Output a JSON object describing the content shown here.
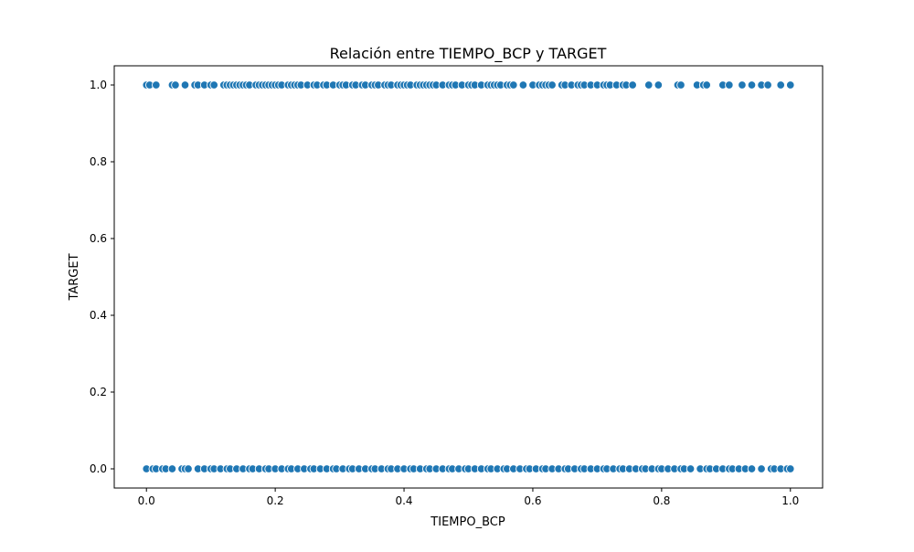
{
  "chart_data": {
    "type": "scatter",
    "title": "Relación entre TIEMPO_BCP y TARGET",
    "xlabel": "TIEMPO_BCP",
    "ylabel": "TARGET",
    "xlim": [
      -0.05,
      1.05
    ],
    "ylim": [
      -0.05,
      1.05
    ],
    "xticks": [
      "0.0",
      "0.2",
      "0.4",
      "0.6",
      "0.8",
      "1.0"
    ],
    "yticks": [
      "0.0",
      "0.2",
      "0.4",
      "0.6",
      "0.8",
      "1.0"
    ],
    "grid": false,
    "legend": "none",
    "marker_color": "#1f77b4",
    "marker_edge": "#ffffff",
    "series": [
      {
        "x": [
          0.0,
          0.005,
          0.015,
          0.04,
          0.045,
          0.06,
          0.075,
          0.08,
          0.09,
          0.1,
          0.105,
          0.12,
          0.125,
          0.13,
          0.135,
          0.14,
          0.145,
          0.15,
          0.155,
          0.16,
          0.17,
          0.175,
          0.18,
          0.185,
          0.19,
          0.195,
          0.2,
          0.205,
          0.21,
          0.22,
          0.225,
          0.23,
          0.235,
          0.24,
          0.25,
          0.26,
          0.265,
          0.275,
          0.28,
          0.29,
          0.3,
          0.305,
          0.31,
          0.32,
          0.325,
          0.335,
          0.34,
          0.35,
          0.355,
          0.36,
          0.37,
          0.375,
          0.38,
          0.39,
          0.395,
          0.4,
          0.405,
          0.41,
          0.42,
          0.425,
          0.43,
          0.435,
          0.44,
          0.445,
          0.45,
          0.46,
          0.47,
          0.475,
          0.48,
          0.49,
          0.5,
          0.505,
          0.51,
          0.52,
          0.53,
          0.535,
          0.54,
          0.545,
          0.55,
          0.56,
          0.565,
          0.57,
          0.585,
          0.6,
          0.61,
          0.615,
          0.62,
          0.625,
          0.63,
          0.645,
          0.65,
          0.66,
          0.67,
          0.675,
          0.68,
          0.69,
          0.7,
          0.71,
          0.715,
          0.72,
          0.73,
          0.74,
          0.745,
          0.755,
          0.78,
          0.795,
          0.825,
          0.83,
          0.855,
          0.865,
          0.87,
          0.895,
          0.905,
          0.925,
          0.94,
          0.955,
          0.965,
          0.985,
          1.0
        ],
        "y": [
          1,
          1,
          1,
          1,
          1,
          1,
          1,
          1,
          1,
          1,
          1,
          1,
          1,
          1,
          1,
          1,
          1,
          1,
          1,
          1,
          1,
          1,
          1,
          1,
          1,
          1,
          1,
          1,
          1,
          1,
          1,
          1,
          1,
          1,
          1,
          1,
          1,
          1,
          1,
          1,
          1,
          1,
          1,
          1,
          1,
          1,
          1,
          1,
          1,
          1,
          1,
          1,
          1,
          1,
          1,
          1,
          1,
          1,
          1,
          1,
          1,
          1,
          1,
          1,
          1,
          1,
          1,
          1,
          1,
          1,
          1,
          1,
          1,
          1,
          1,
          1,
          1,
          1,
          1,
          1,
          1,
          1,
          1,
          1,
          1,
          1,
          1,
          1,
          1,
          1,
          1,
          1,
          1,
          1,
          1,
          1,
          1,
          1,
          1,
          1,
          1,
          1,
          1,
          1,
          1,
          1,
          1,
          1,
          1,
          1,
          1,
          1,
          1,
          1,
          1,
          1,
          1,
          1,
          1
        ]
      },
      {
        "x": [
          0.0,
          0.01,
          0.015,
          0.025,
          0.03,
          0.04,
          0.055,
          0.06,
          0.065,
          0.08,
          0.09,
          0.1,
          0.105,
          0.115,
          0.125,
          0.13,
          0.14,
          0.15,
          0.16,
          0.165,
          0.175,
          0.185,
          0.19,
          0.2,
          0.21,
          0.22,
          0.225,
          0.235,
          0.245,
          0.255,
          0.26,
          0.27,
          0.28,
          0.29,
          0.295,
          0.305,
          0.315,
          0.32,
          0.33,
          0.34,
          0.35,
          0.355,
          0.365,
          0.375,
          0.38,
          0.39,
          0.4,
          0.41,
          0.415,
          0.425,
          0.435,
          0.44,
          0.45,
          0.46,
          0.47,
          0.475,
          0.485,
          0.495,
          0.5,
          0.51,
          0.52,
          0.53,
          0.535,
          0.545,
          0.555,
          0.56,
          0.57,
          0.58,
          0.59,
          0.595,
          0.605,
          0.615,
          0.62,
          0.63,
          0.64,
          0.65,
          0.655,
          0.665,
          0.675,
          0.68,
          0.69,
          0.7,
          0.71,
          0.715,
          0.725,
          0.735,
          0.74,
          0.75,
          0.76,
          0.77,
          0.775,
          0.785,
          0.795,
          0.8,
          0.81,
          0.82,
          0.83,
          0.835,
          0.845,
          0.86,
          0.87,
          0.875,
          0.885,
          0.895,
          0.905,
          0.91,
          0.92,
          0.93,
          0.94,
          0.955,
          0.97,
          0.975,
          0.985,
          0.995,
          1.0
        ],
        "y": [
          0,
          0,
          0,
          0,
          0,
          0,
          0,
          0,
          0,
          0,
          0,
          0,
          0,
          0,
          0,
          0,
          0,
          0,
          0,
          0,
          0,
          0,
          0,
          0,
          0,
          0,
          0,
          0,
          0,
          0,
          0,
          0,
          0,
          0,
          0,
          0,
          0,
          0,
          0,
          0,
          0,
          0,
          0,
          0,
          0,
          0,
          0,
          0,
          0,
          0,
          0,
          0,
          0,
          0,
          0,
          0,
          0,
          0,
          0,
          0,
          0,
          0,
          0,
          0,
          0,
          0,
          0,
          0,
          0,
          0,
          0,
          0,
          0,
          0,
          0,
          0,
          0,
          0,
          0,
          0,
          0,
          0,
          0,
          0,
          0,
          0,
          0,
          0,
          0,
          0,
          0,
          0,
          0,
          0,
          0,
          0,
          0,
          0,
          0,
          0,
          0,
          0,
          0,
          0,
          0,
          0,
          0,
          0,
          0,
          0,
          0,
          0,
          0,
          0,
          0
        ]
      }
    ]
  }
}
